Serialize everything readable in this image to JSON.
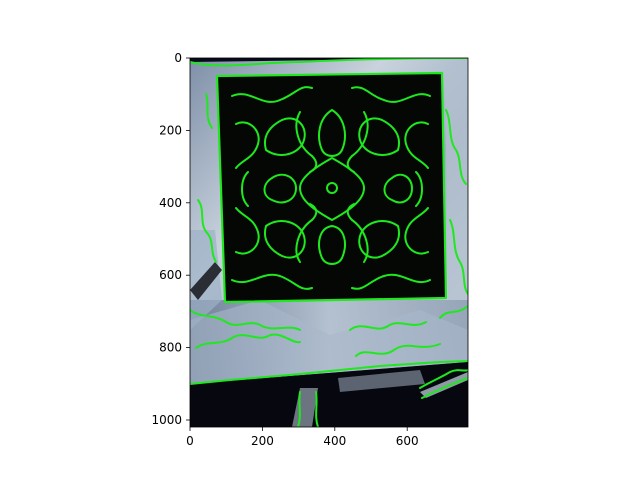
{
  "figure": {
    "background": "#ffffff",
    "image_description_colors": {
      "contour": "#22ee22",
      "foil_light": "#c8d2dc",
      "foil_dark": "#3a4a62",
      "panel": "#050805",
      "space": "#07091c"
    }
  },
  "axes": {
    "x_ticks": [
      "0",
      "200",
      "400",
      "600"
    ],
    "y_ticks": [
      "0",
      "200",
      "400",
      "600",
      "800",
      "1000"
    ],
    "xlim": [
      0,
      768
    ],
    "ylim": [
      1024,
      0
    ]
  }
}
